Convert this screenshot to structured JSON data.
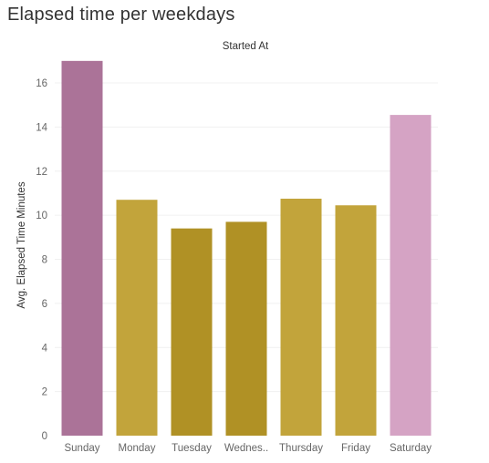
{
  "page": {
    "title": "Elapsed time per weekdays"
  },
  "chart_data": {
    "type": "bar",
    "title": "Elapsed time per weekdays",
    "column_header": "Started At",
    "xlabel": "",
    "ylabel": "Avg. Elapsed Time Minutes",
    "categories": [
      "Sunday",
      "Monday",
      "Tuesday",
      "Wednes..",
      "Thursday",
      "Friday",
      "Saturday"
    ],
    "values": [
      17.0,
      10.7,
      9.4,
      9.7,
      10.75,
      10.45,
      14.55
    ],
    "colors": [
      "#ab7398",
      "#c2a43b",
      "#b09125",
      "#b09125",
      "#c2a43b",
      "#c2a43b",
      "#d5a3c4"
    ],
    "yticks": [
      0,
      2,
      4,
      6,
      8,
      10,
      12,
      14,
      16
    ],
    "ylim": [
      0,
      17.2
    ],
    "grid": true
  }
}
